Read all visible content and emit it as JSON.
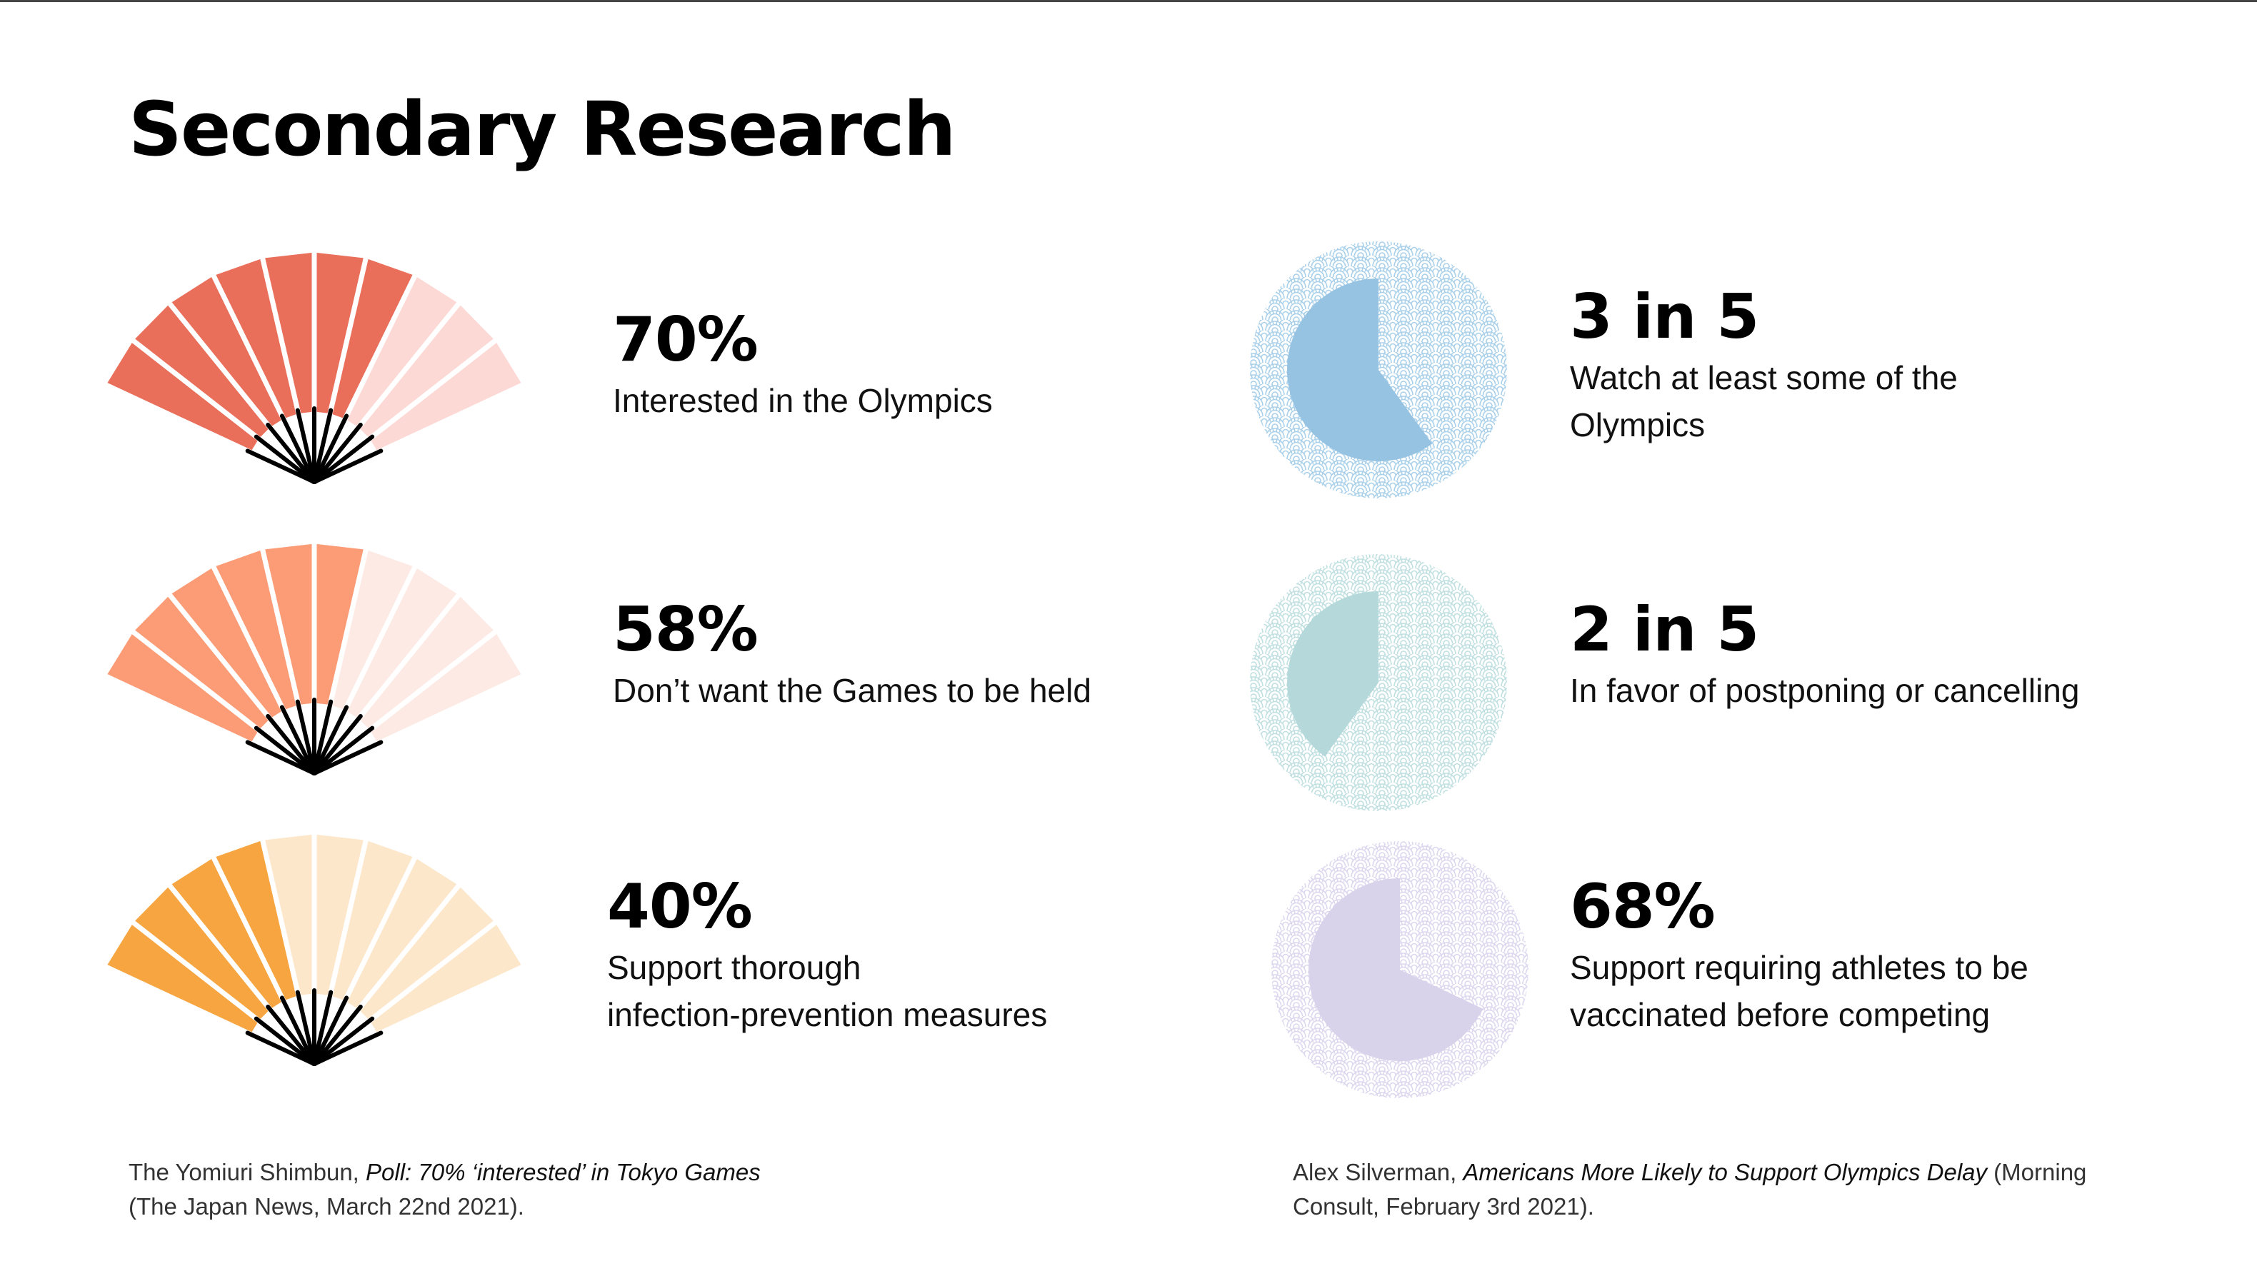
{
  "title": "Secondary Research",
  "stats_left": [
    {
      "value": "70%",
      "lines": [
        "Interested in the Olympics"
      ],
      "fraction": 0.7,
      "filled_color": "#ea6f5b",
      "empty_color": "#fdd9d6"
    },
    {
      "value": "58%",
      "lines": [
        "Don’t want the Games to be held"
      ],
      "fraction": 0.58,
      "filled_color": "#fc9c76",
      "empty_color": "#fdeae4"
    },
    {
      "value": "40%",
      "lines": [
        "Support thorough",
        "infection-prevention measures"
      ],
      "fraction": 0.4,
      "filled_color": "#f7a540",
      "empty_color": "#fde7cb"
    }
  ],
  "stats_right": [
    {
      "value": "3 in 5",
      "lines": [
        "Watch at least some of the",
        "Olympics"
      ],
      "fraction": 0.6,
      "fill_color": "#96c3e2",
      "pattern_color": "#a9d0ea"
    },
    {
      "value": "2 in 5",
      "lines": [
        "In favor of postponing or cancelling"
      ],
      "fraction": 0.4,
      "fill_color": "#b5d9da",
      "pattern_color": "#bfdfe0"
    },
    {
      "value": "68%",
      "lines": [
        "Support requiring athletes to be",
        "vaccinated before competing"
      ],
      "fraction": 0.68,
      "fill_color": "#d8d2ea",
      "pattern_color": "#dcd7ee"
    }
  ],
  "sources": {
    "left": {
      "author": "The Yomiuri Shimbun, ",
      "work": "Poll: 70% ‘interested’ in Tokyo Games",
      "rest": "(The Japan News, March 22nd 2021)."
    },
    "right": {
      "author": "Alex Silverman, ",
      "work": "Americans More Likely to Support Olympics Delay",
      "rest_a": " (Morning",
      "rest_b": "Consult, February 3rd 2021)."
    }
  }
}
